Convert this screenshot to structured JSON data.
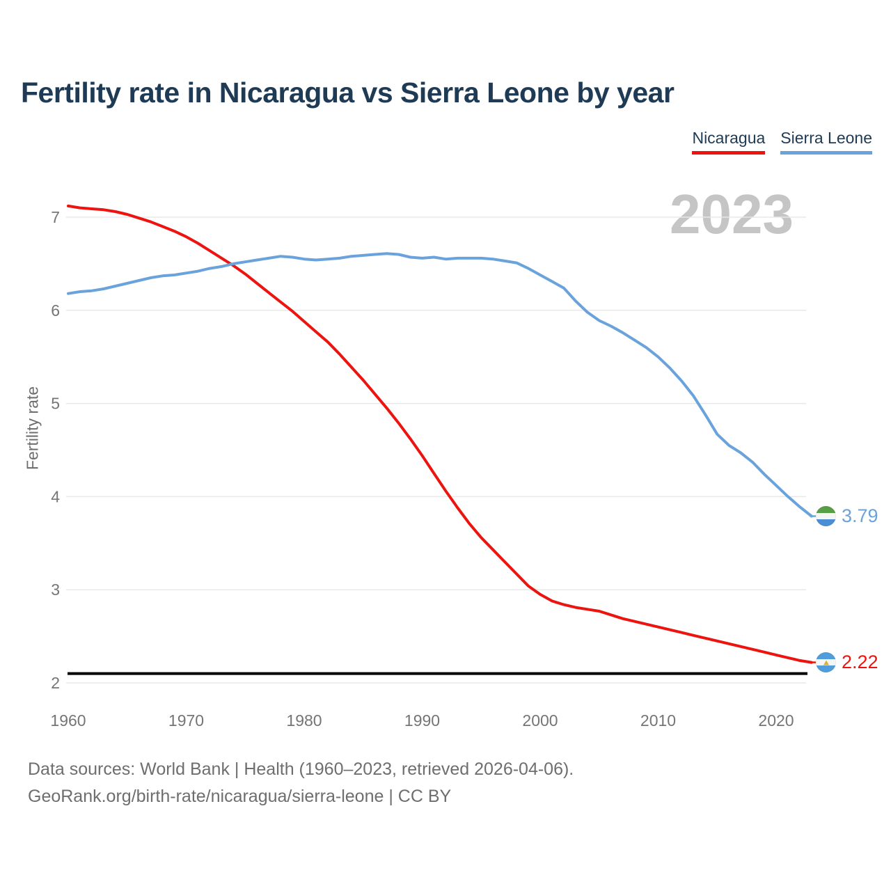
{
  "title": "Fertility rate in Nicaragua vs Sierra Leone by year",
  "watermark": "2023",
  "legend": [
    {
      "label": "Nicaragua",
      "color": "#ed1410"
    },
    {
      "label": "Sierra Leone",
      "color": "#6aa3dc"
    }
  ],
  "footer": {
    "line1": "Data sources: World Bank | Health (1960–2023, retrieved 2026-04-06).",
    "line2": "GeoRank.org/birth-rate/nicaragua/sierra-leone | CC BY"
  },
  "chart_data": {
    "type": "line",
    "title": "Fertility rate in Nicaragua vs Sierra Leone by year",
    "xlabel": "",
    "ylabel": "Fertility rate",
    "x_tick_labels": [
      "1960",
      "1970",
      "1980",
      "1990",
      "2000",
      "2010",
      "2020"
    ],
    "x_ticks": [
      1960,
      1970,
      1980,
      1990,
      2000,
      2010,
      2020
    ],
    "y_ticks": [
      2,
      3,
      4,
      5,
      6,
      7
    ],
    "ylim": [
      2,
      7.2
    ],
    "xlim": [
      1960,
      2023
    ],
    "grid": "horizontal",
    "legend_position": "top-right",
    "reference_line": {
      "value": 2.1,
      "color": "#000000",
      "name": "replacement-rate-line"
    },
    "years": [
      1960,
      1961,
      1962,
      1963,
      1964,
      1965,
      1966,
      1967,
      1968,
      1969,
      1970,
      1971,
      1972,
      1973,
      1974,
      1975,
      1976,
      1977,
      1978,
      1979,
      1980,
      1981,
      1982,
      1983,
      1984,
      1985,
      1986,
      1987,
      1988,
      1989,
      1990,
      1991,
      1992,
      1993,
      1994,
      1995,
      1996,
      1997,
      1998,
      1999,
      2000,
      2001,
      2002,
      2003,
      2004,
      2005,
      2006,
      2007,
      2008,
      2009,
      2010,
      2011,
      2012,
      2013,
      2014,
      2015,
      2016,
      2017,
      2018,
      2019,
      2020,
      2021,
      2022,
      2023
    ],
    "series": [
      {
        "name": "Nicaragua",
        "color": "#ed1410",
        "end_label": "2.22",
        "end_year": 2023,
        "flag": {
          "icon": "nicaragua-flag-icon",
          "stripes": [
            "#519ddb",
            "#f5f6f4",
            "#519ddb"
          ],
          "emblem": true
        },
        "values": [
          7.12,
          7.1,
          7.09,
          7.08,
          7.06,
          7.03,
          6.99,
          6.95,
          6.9,
          6.85,
          6.79,
          6.72,
          6.64,
          6.56,
          6.48,
          6.39,
          6.29,
          6.19,
          6.09,
          5.99,
          5.88,
          5.77,
          5.66,
          5.53,
          5.39,
          5.25,
          5.1,
          4.95,
          4.79,
          4.62,
          4.44,
          4.25,
          4.06,
          3.88,
          3.71,
          3.56,
          3.43,
          3.3,
          3.17,
          3.04,
          2.95,
          2.88,
          2.84,
          2.81,
          2.79,
          2.77,
          2.73,
          2.69,
          2.66,
          2.63,
          2.6,
          2.57,
          2.54,
          2.51,
          2.48,
          2.45,
          2.42,
          2.39,
          2.36,
          2.33,
          2.3,
          2.27,
          2.24,
          2.22
        ]
      },
      {
        "name": "Sierra Leone",
        "color": "#6aa3dc",
        "end_label": "3.79",
        "end_year": 2023,
        "flag": {
          "icon": "sierra-leone-flag-icon",
          "stripes": [
            "#579f44",
            "#f5f6f4",
            "#4a8fd6"
          ],
          "emblem": false
        },
        "values": [
          6.18,
          6.2,
          6.21,
          6.23,
          6.26,
          6.29,
          6.32,
          6.35,
          6.37,
          6.38,
          6.4,
          6.42,
          6.45,
          6.47,
          6.5,
          6.52,
          6.54,
          6.56,
          6.58,
          6.57,
          6.55,
          6.54,
          6.55,
          6.56,
          6.58,
          6.59,
          6.6,
          6.61,
          6.6,
          6.57,
          6.56,
          6.57,
          6.55,
          6.56,
          6.56,
          6.56,
          6.55,
          6.53,
          6.51,
          6.45,
          6.38,
          6.31,
          6.24,
          6.1,
          5.98,
          5.89,
          5.83,
          5.76,
          5.68,
          5.6,
          5.5,
          5.38,
          5.24,
          5.08,
          4.88,
          4.67,
          4.55,
          4.47,
          4.37,
          4.24,
          4.12,
          4.0,
          3.89,
          3.79
        ]
      }
    ]
  }
}
